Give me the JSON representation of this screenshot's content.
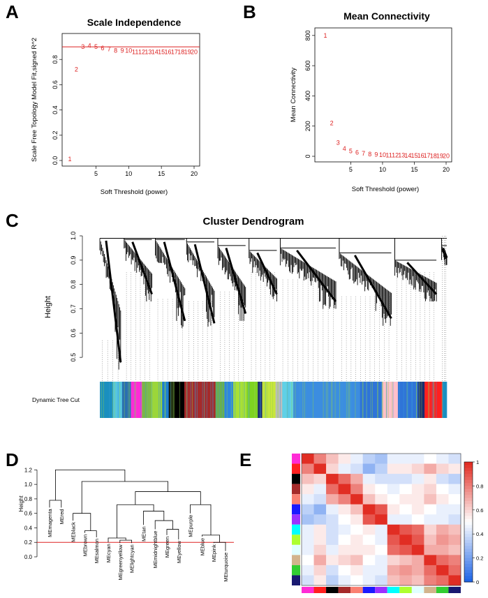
{
  "chart_data": [
    {
      "panel": "A",
      "type": "scatter",
      "title": "Scale Independence",
      "xlabel": "Soft Threshold (power)",
      "ylabel": "Scale Free Topology Model Fit,signed R^2",
      "xlim": [
        1,
        20
      ],
      "ylim": [
        0,
        1
      ],
      "xticks": [
        5,
        10,
        15,
        20
      ],
      "yticks": [
        0.0,
        0.2,
        0.4,
        0.6,
        0.8
      ],
      "hline": 0.9,
      "x": [
        1,
        2,
        3,
        4,
        5,
        6,
        7,
        8,
        9,
        10,
        11,
        12,
        13,
        14,
        15,
        16,
        17,
        18,
        19,
        20
      ],
      "y": [
        0.01,
        0.72,
        0.9,
        0.91,
        0.9,
        0.89,
        0.88,
        0.87,
        0.87,
        0.87,
        0.86,
        0.86,
        0.86,
        0.86,
        0.86,
        0.86,
        0.86,
        0.86,
        0.86,
        0.86
      ],
      "labels": [
        "1",
        "2",
        "3",
        "4",
        "5",
        "6",
        "7",
        "8",
        "9",
        "10",
        "11",
        "12",
        "13",
        "14",
        "15",
        "16",
        "17",
        "18",
        "19",
        "20"
      ]
    },
    {
      "panel": "B",
      "type": "scatter",
      "title": "Mean Connectivity",
      "xlabel": "Soft Threshold (power)",
      "ylabel": "Mean Connectivity",
      "xlim": [
        1,
        20
      ],
      "ylim": [
        0,
        850
      ],
      "xticks": [
        5,
        10,
        15,
        20
      ],
      "yticks": [
        0,
        200,
        400,
        600,
        800
      ],
      "x": [
        1,
        2,
        3,
        4,
        5,
        6,
        7,
        8,
        9,
        10,
        11,
        12,
        13,
        14,
        15,
        16,
        17,
        18,
        19,
        20
      ],
      "y": [
        800,
        220,
        90,
        50,
        35,
        25,
        18,
        15,
        12,
        10,
        8,
        7,
        6,
        5,
        5,
        4,
        4,
        3,
        3,
        3
      ],
      "labels": [
        "1",
        "2",
        "3",
        "4",
        "5",
        "6",
        "7",
        "8",
        "9",
        "10",
        "11",
        "12",
        "13",
        "14",
        "15",
        "16",
        "17",
        "18",
        "19",
        "20"
      ]
    },
    {
      "panel": "C",
      "type": "dendrogram",
      "title": "Cluster Dendrogram",
      "ylabel": "Height",
      "ylim": [
        0.42,
        1.0
      ],
      "yticks": [
        0.5,
        0.6,
        0.7,
        0.8,
        0.9,
        1.0
      ],
      "colorbar_label": "Dynamic Tree Cut",
      "modules": [
        {
          "color": "#1a8fbf",
          "w": 6
        },
        {
          "color": "#56c6e0",
          "w": 4
        },
        {
          "color": "#2a6fb0",
          "w": 4
        },
        {
          "color": "#ff2bd6",
          "w": 5
        },
        {
          "color": "#7ab648",
          "w": 4
        },
        {
          "color": "#9bd63a",
          "w": 5
        },
        {
          "color": "#1c7fd0",
          "w": 3
        },
        {
          "color": "#000000",
          "w": 7
        },
        {
          "color": "#a52a2a",
          "w": 14
        },
        {
          "color": "#6ab04c",
          "w": 4
        },
        {
          "color": "#2e86de",
          "w": 4
        },
        {
          "color": "#a8e036",
          "w": 6
        },
        {
          "color": "#7ed321",
          "w": 5
        },
        {
          "color": "#1b2b6e",
          "w": 2
        },
        {
          "color": "#c8e63c",
          "w": 6
        },
        {
          "color": "#bdbdbd",
          "w": 3
        },
        {
          "color": "#5fd0e6",
          "w": 5
        },
        {
          "color": "#3c8de0",
          "w": 30
        },
        {
          "color": "#2f74d8",
          "w": 10
        },
        {
          "color": "#ffc0cb",
          "w": 7
        },
        {
          "color": "#2f74d8",
          "w": 9
        },
        {
          "color": "#1b2b6e",
          "w": 3
        },
        {
          "color": "#ff2020",
          "w": 8
        },
        {
          "color": "#1a8fbf",
          "w": 2
        }
      ],
      "branches": [
        {
          "x": [
            0.0,
            0.01,
            0.02,
            0.035,
            0.06
          ],
          "top": 0.99,
          "tip": 0.45
        },
        {
          "x": [
            0.07,
            0.09,
            0.11,
            0.13,
            0.15
          ],
          "top": 0.985,
          "tip": 0.73
        },
        {
          "x": [
            0.16,
            0.18,
            0.2,
            0.22,
            0.245
          ],
          "top": 0.985,
          "tip": 0.62
        },
        {
          "x": [
            0.25,
            0.27,
            0.29,
            0.31,
            0.33
          ],
          "top": 0.975,
          "tip": 0.61
        },
        {
          "x": [
            0.34,
            0.36,
            0.38,
            0.4,
            0.42
          ],
          "top": 0.96,
          "tip": 0.65
        },
        {
          "x": [
            0.43,
            0.45,
            0.47,
            0.49,
            0.51
          ],
          "top": 0.94,
          "tip": 0.73
        },
        {
          "x": [
            0.52,
            0.56,
            0.6,
            0.64,
            0.68
          ],
          "top": 0.95,
          "tip": 0.7
        },
        {
          "x": [
            0.69,
            0.72,
            0.76,
            0.8,
            0.84
          ],
          "top": 0.93,
          "tip": 0.63
        },
        {
          "x": [
            0.85,
            0.88,
            0.91,
            0.94,
            0.97
          ],
          "top": 0.9,
          "tip": 0.73
        },
        {
          "x": [
            0.985,
            0.99,
            0.995,
            1.0
          ],
          "top": 0.96,
          "tip": 0.88
        }
      ]
    },
    {
      "panel": "D",
      "type": "dendrogram",
      "ylabel": "Height",
      "ylim": [
        0,
        1.3
      ],
      "yticks": [
        0.0,
        0.2,
        0.4,
        0.6,
        0.8,
        1.0,
        1.2
      ],
      "cut_height": 0.2,
      "leaves": [
        "MEmagenta",
        "MEred",
        "MEblack",
        "MEbrown",
        "MEsalmon",
        "MEcyan",
        "MEgreenyellow",
        "MElightcyan",
        "MEtan",
        "MEmidnightblue",
        "MEgreen",
        "MEyellow",
        "MEpurple",
        "MEblue",
        "MEpink",
        "MEturquoise"
      ],
      "leaf_heights": [
        0.68,
        0.68,
        0.5,
        0.33,
        0.27,
        0.2,
        0.19,
        0.19,
        0.44,
        0.38,
        0.3,
        0.24,
        0.6,
        0.28,
        0.19,
        0.08
      ],
      "merges": [
        {
          "a": 0,
          "b": 1,
          "h": 0.78
        },
        {
          "a": 3,
          "b": 4,
          "h": 0.36
        },
        {
          "a": 2,
          "b": "m1",
          "h": 0.6
        },
        {
          "a": 6,
          "b": 7,
          "h": 0.23
        },
        {
          "a": 5,
          "b": "m3",
          "h": 0.26
        },
        {
          "a": 10,
          "b": 11,
          "h": 0.38
        },
        {
          "a": 9,
          "b": "m5",
          "h": 0.5
        },
        {
          "a": 8,
          "b": "m6",
          "h": 0.63
        },
        {
          "a": 14,
          "b": 15,
          "h": 0.2
        },
        {
          "a": 13,
          "b": "m8",
          "h": 0.3
        },
        {
          "a": 12,
          "b": "m9",
          "h": 0.72
        },
        {
          "a": "m4",
          "b": "m7",
          "h": 0.72
        },
        {
          "a": "m11",
          "b": "m10",
          "h": 0.9
        },
        {
          "a": "m2",
          "b": "m12",
          "h": 1.04
        },
        {
          "a": "m0",
          "b": "m13",
          "h": 1.2
        }
      ]
    },
    {
      "panel": "E",
      "type": "heatmap",
      "colorbar_ticks": [
        "0",
        "0.2",
        "0.4",
        "0.6",
        "0.8",
        "1"
      ],
      "row_colors": [
        "#ff2bd6",
        "#ff2020",
        "#000000",
        "#a52a2a",
        "#fa8072",
        "#1a1aff",
        "#9b30ff",
        "#00ffff",
        "#adff2f",
        "#e0ffff",
        "#d2b48c",
        "#32cd32",
        "#191970"
      ],
      "col_colors": [
        "#ff2bd6",
        "#ff2020",
        "#000000",
        "#a52a2a",
        "#fa8072",
        "#1a1aff",
        "#9b30ff",
        "#00ffff",
        "#adff2f",
        "#e0ffff",
        "#d2b48c",
        "#32cd32",
        "#191970"
      ],
      "matrix": [
        [
          1.0,
          0.8,
          0.65,
          0.55,
          0.45,
          0.35,
          0.3,
          0.45,
          0.45,
          0.45,
          0.5,
          0.45,
          0.4
        ],
        [
          0.8,
          1.0,
          0.6,
          0.45,
          0.4,
          0.25,
          0.35,
          0.55,
          0.55,
          0.6,
          0.7,
          0.6,
          0.55
        ],
        [
          0.65,
          0.6,
          1.0,
          0.85,
          0.7,
          0.45,
          0.4,
          0.4,
          0.4,
          0.45,
          0.55,
          0.4,
          0.35
        ],
        [
          0.55,
          0.45,
          0.85,
          1.0,
          0.8,
          0.55,
          0.5,
          0.45,
          0.5,
          0.55,
          0.6,
          0.5,
          0.45
        ],
        [
          0.45,
          0.4,
          0.7,
          0.8,
          1.0,
          0.65,
          0.55,
          0.5,
          0.55,
          0.55,
          0.65,
          0.55,
          0.5
        ],
        [
          0.35,
          0.25,
          0.45,
          0.55,
          0.65,
          1.0,
          0.9,
          0.55,
          0.5,
          0.55,
          0.5,
          0.45,
          0.45
        ],
        [
          0.3,
          0.35,
          0.4,
          0.5,
          0.55,
          0.9,
          1.0,
          0.45,
          0.45,
          0.5,
          0.45,
          0.45,
          0.4
        ],
        [
          0.45,
          0.55,
          0.4,
          0.45,
          0.5,
          0.55,
          0.45,
          1.0,
          0.9,
          0.85,
          0.6,
          0.7,
          0.65
        ],
        [
          0.45,
          0.55,
          0.4,
          0.5,
          0.55,
          0.5,
          0.45,
          0.9,
          1.0,
          0.9,
          0.65,
          0.75,
          0.7
        ],
        [
          0.45,
          0.6,
          0.45,
          0.55,
          0.55,
          0.55,
          0.5,
          0.85,
          0.9,
          1.0,
          0.7,
          0.7,
          0.65
        ],
        [
          0.5,
          0.7,
          0.55,
          0.6,
          0.65,
          0.5,
          0.45,
          0.6,
          0.65,
          0.7,
          1.0,
          0.85,
          0.8
        ],
        [
          0.45,
          0.6,
          0.4,
          0.5,
          0.55,
          0.45,
          0.45,
          0.7,
          0.75,
          0.7,
          0.85,
          1.0,
          0.85
        ],
        [
          0.4,
          0.55,
          0.35,
          0.45,
          0.5,
          0.45,
          0.4,
          0.65,
          0.7,
          0.65,
          0.8,
          0.85,
          1.0
        ]
      ]
    }
  ],
  "colors": {
    "accent_red": "#dd2222",
    "point_red": "#d22222"
  }
}
